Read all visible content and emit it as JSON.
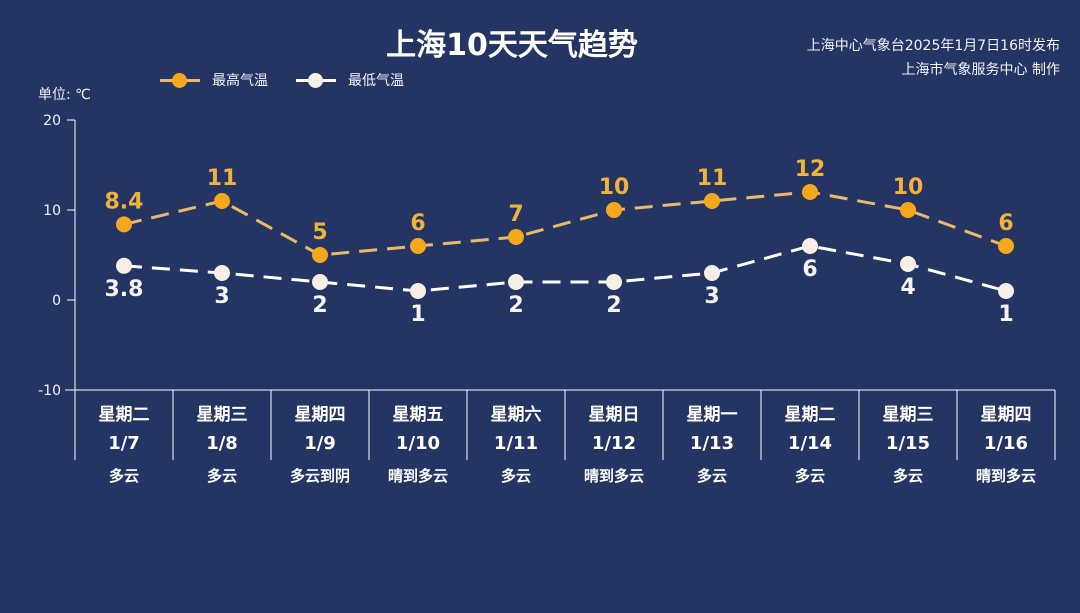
{
  "header": {
    "title": "上海10天天气趋势",
    "publisher_line1": "上海中心气象台2025年1月7日16时发布",
    "publisher_line2": "上海市气象服务中心 制作"
  },
  "axis": {
    "unit_label": "单位: ℃",
    "y_ticks": [
      "20",
      "10",
      "0",
      "-10"
    ]
  },
  "legend": {
    "items": [
      {
        "label": "最高气温",
        "color": "#f5a81c",
        "line_color": "#e8b96a"
      },
      {
        "label": "最低气温",
        "color": "#f5efe6",
        "line_color": "#ffffff"
      }
    ]
  },
  "days": [
    {
      "weekday": "星期二",
      "date": "1/7",
      "weather": "多云"
    },
    {
      "weekday": "星期三",
      "date": "1/8",
      "weather": "多云"
    },
    {
      "weekday": "星期四",
      "date": "1/9",
      "weather": "多云到阴"
    },
    {
      "weekday": "星期五",
      "date": "1/10",
      "weather": "晴到多云"
    },
    {
      "weekday": "星期六",
      "date": "1/11",
      "weather": "多云"
    },
    {
      "weekday": "星期日",
      "date": "1/12",
      "weather": "晴到多云"
    },
    {
      "weekday": "星期一",
      "date": "1/13",
      "weather": "多云"
    },
    {
      "weekday": "星期二",
      "date": "1/14",
      "weather": "多云"
    },
    {
      "weekday": "星期三",
      "date": "1/15",
      "weather": "多云"
    },
    {
      "weekday": "星期四",
      "date": "1/16",
      "weather": "晴到多云"
    }
  ],
  "colors": {
    "background": "#243564",
    "high": "#f5a81c",
    "high_line": "#e8b96a",
    "high_label": "#f0b23a",
    "low": "#f5efe6",
    "low_line": "#ffffff",
    "axis": "#ffffff"
  },
  "chart_data": {
    "type": "line",
    "title": "上海10天天气趋势",
    "xlabel": "",
    "ylabel": "单位: ℃",
    "ylim": [
      -10,
      20
    ],
    "y_ticks": [
      -10,
      0,
      10,
      20
    ],
    "grid": false,
    "legend_position": "top-left",
    "categories": [
      "星期二 1/7",
      "星期三 1/8",
      "星期四 1/9",
      "星期五 1/10",
      "星期六 1/11",
      "星期日 1/12",
      "星期一 1/13",
      "星期二 1/14",
      "星期三 1/15",
      "星期四 1/16"
    ],
    "series": [
      {
        "name": "最高气温",
        "values": [
          8.4,
          11,
          5,
          6,
          7,
          10,
          11,
          12,
          10,
          6
        ],
        "labels": [
          "8.4",
          "11",
          "5",
          "6",
          "7",
          "10",
          "11",
          "12",
          "10",
          "6"
        ]
      },
      {
        "name": "最低气温",
        "values": [
          3.8,
          3,
          2,
          1,
          2,
          2,
          3,
          6,
          4,
          1
        ],
        "labels": [
          "3.8",
          "3",
          "2",
          "1",
          "2",
          "2",
          "3",
          "6",
          "4",
          "1"
        ]
      }
    ],
    "annotations": [
      "上海中心气象台2025年1月7日16时发布",
      "上海市气象服务中心 制作"
    ]
  }
}
